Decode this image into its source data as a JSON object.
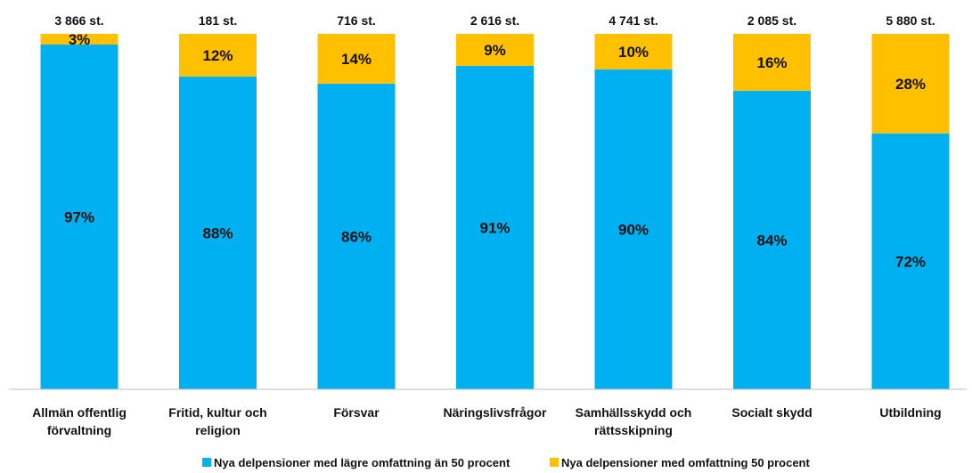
{
  "chart_data": {
    "type": "bar",
    "stacked": true,
    "orientation": "vertical",
    "categories": [
      [
        "Allmän offentlig",
        "förvaltning"
      ],
      [
        "Fritid, kultur och",
        "religion"
      ],
      [
        "Försvar"
      ],
      [
        "Näringslivsfrågor"
      ],
      [
        "Samhällsskydd och",
        "rättsskipning"
      ],
      [
        "Socialt skydd"
      ],
      [
        "Utbildning"
      ]
    ],
    "totals": [
      "3 866 st.",
      "181 st.",
      "716 st.",
      "2 616 st.",
      "4 741 st.",
      "2 085 st.",
      "5 880 st."
    ],
    "series": [
      {
        "name": "Nya delpensioner med lägre omfattning än 50 procent",
        "color": "#00B0F0",
        "values": [
          97,
          88,
          86,
          91,
          90,
          84,
          72
        ],
        "labels": [
          "97%",
          "88%",
          "86%",
          "91%",
          "90%",
          "84%",
          "72%"
        ]
      },
      {
        "name": "Nya delpensioner med omfattning 50 procent",
        "color": "#FFC000",
        "values": [
          3,
          12,
          14,
          9,
          10,
          16,
          28
        ],
        "labels": [
          "3%",
          "12%",
          "14%",
          "9%",
          "10%",
          "16%",
          "28%"
        ]
      }
    ],
    "ylim": [
      0,
      100
    ],
    "grid": false,
    "legend_position": "bottom"
  }
}
